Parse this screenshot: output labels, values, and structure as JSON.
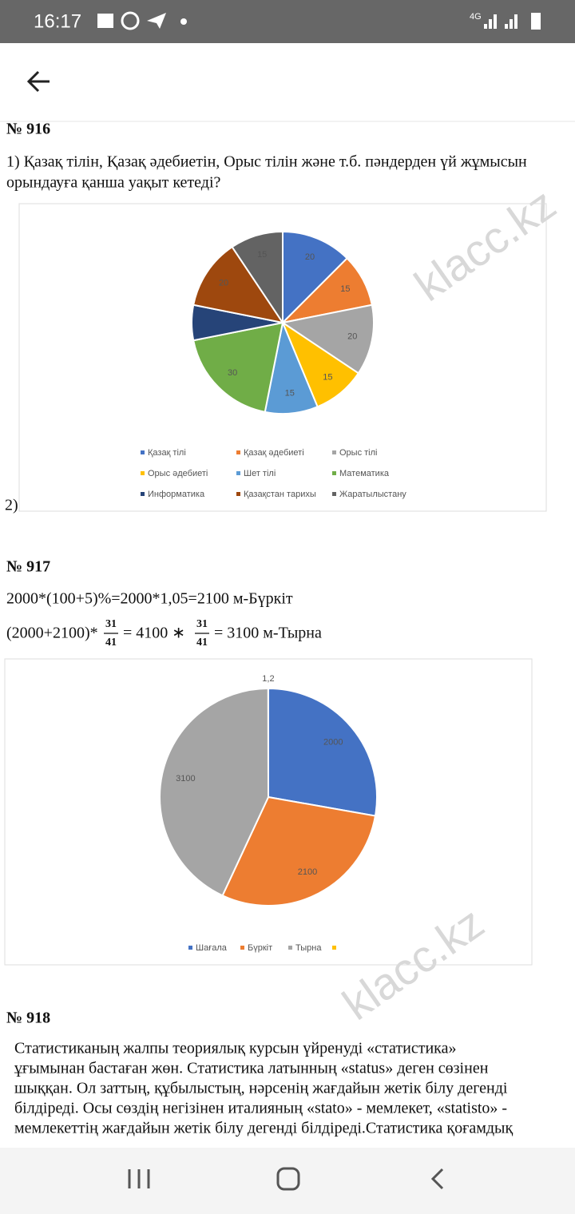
{
  "status_bar": {
    "time": "16:17",
    "network": "4G"
  },
  "watermark": "klacc.kz",
  "problems": [
    {
      "number": "№ 916",
      "lines": [
        "1) Қазақ тілін, Қазақ әдебиетін, Орыс тілін және т.б. пәндерден үй жұмысын",
        "орындауға қанша уақыт кетеді?"
      ],
      "sub_label": "2)"
    },
    {
      "number": "№ 917",
      "lines": [
        "2000*(100+5)%=2000*1,05=2100 м-Бүркіт"
      ],
      "formula": {
        "lead": "(2000+2100)*",
        "frac1": [
          "31",
          "41"
        ],
        "mid": "= 4100 ∗",
        "frac2": [
          "31",
          "41"
        ],
        "tail": "= 3100 м-Тырна"
      }
    },
    {
      "number": "№ 918",
      "lines": [
        "Статистиканың жалпы теориялық курсын үйренуді «статистика»",
        "ұғымынан бастаған жөн. Статистика латынның «status» деген сөзінен",
        "шыққан. Ол заттың, құбылыстың, нәрсенің жағдайын жетік білу дегенді",
        "білдіреді. Осы сөздің негізінен италияның «stato» - мемлекет, «statisto» -",
        "мемлекеттің жағдайын жетік білу дегенді білдіреді.Статистика қоғамдық"
      ]
    }
  ],
  "chart_data": [
    {
      "type": "pie",
      "categories": [
        "Қазақ тілі",
        "Қазақ әдебиеті",
        "Орыс тілі",
        "Орыс әдебиеті",
        "Шет тілі",
        "Математика",
        "Информатика",
        "Қазақстан тарихы",
        "Жаратылыстану"
      ],
      "values": [
        20,
        15,
        20,
        15,
        15,
        30,
        10,
        20,
        15
      ],
      "value_labels": [
        "20",
        "15",
        "20",
        "15",
        "15",
        "30",
        null,
        "20",
        "15"
      ],
      "colors": [
        "#4472c4",
        "#ed7d31",
        "#a5a5a5",
        "#ffc000",
        "#5b9bd5",
        "#70ad47",
        "#264478",
        "#9e480e",
        "#636363"
      ],
      "legend": "bottom"
    },
    {
      "type": "pie",
      "categories": [
        "Шағала",
        "Бүркіт",
        "Тырна",
        null
      ],
      "values": [
        2000,
        2100,
        3100,
        1.2
      ],
      "value_labels": [
        "2000",
        "2100",
        "3100",
        "1,2"
      ],
      "colors": [
        "#4472c4",
        "#ed7d31",
        "#a5a5a5",
        "#ffc000"
      ],
      "legend": "bottom"
    }
  ]
}
